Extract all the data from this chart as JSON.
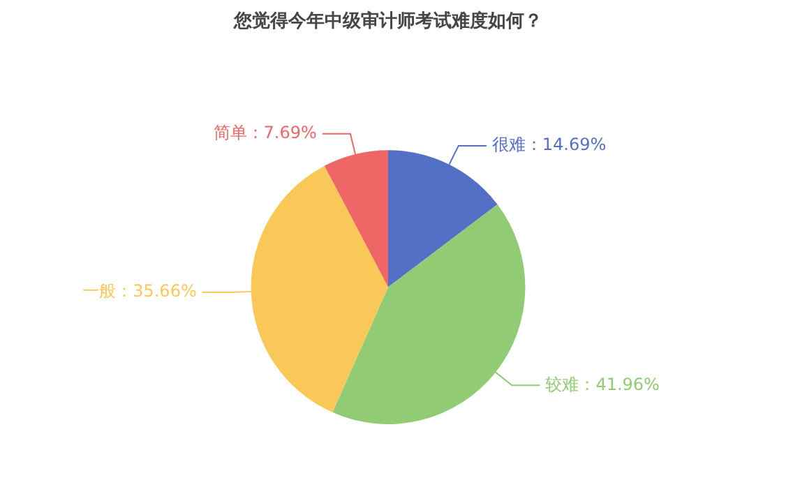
{
  "chart_data": {
    "type": "pie",
    "title": "您觉得今年中级审计师考试难度如何？",
    "categories": [
      "很难",
      "较难",
      "一般",
      "简单"
    ],
    "values": [
      14.69,
      41.96,
      35.66,
      7.69
    ],
    "colors": [
      "#5470c6",
      "#91cc75",
      "#fac858",
      "#ee6666"
    ],
    "value_labels": [
      "：14.69%",
      "：41.96%",
      "：35.66%",
      "：7.69%"
    ],
    "legend": false
  }
}
